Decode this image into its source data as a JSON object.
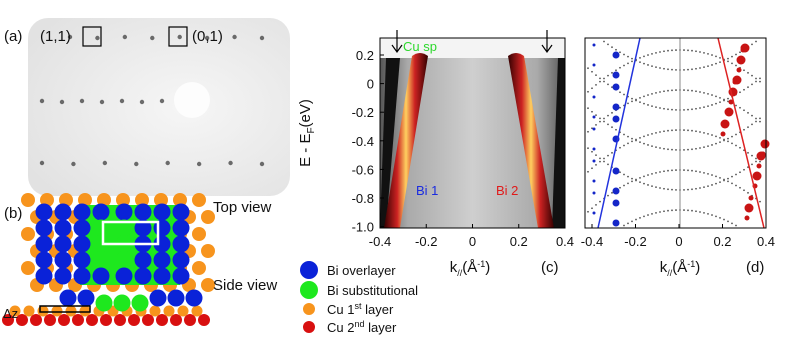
{
  "panel_a": {
    "label": "(a)",
    "spot_labels": [
      "(1,1)",
      "(0,1)"
    ]
  },
  "panel_b": {
    "label": "(b)",
    "views": [
      "Top view",
      "Side view"
    ],
    "dz": "Δz",
    "legend": [
      {
        "text": "Bi overlayer"
      },
      {
        "text": "Bi substitutional"
      },
      {
        "text": "Cu 1",
        "sup": "st",
        "rest": " layer"
      },
      {
        "text": "Cu 2",
        "sup": "nd",
        "rest": " layer"
      }
    ]
  },
  "axis_labels": {
    "energy": [
      "E - E",
      "F",
      "(eV)"
    ],
    "k": [
      "k",
      "//",
      "(Å",
      "-1",
      ")"
    ]
  },
  "panel_c": {
    "label": "(c)",
    "annotations": {
      "cu_sp": "Cu sp",
      "bi1": "Bi 1",
      "bi2": "Bi 2"
    },
    "xticks": [
      "-0.4",
      "-0.2",
      "0",
      "0.2",
      "0.4"
    ],
    "yticks": [
      "0.2",
      "0",
      "-0.2",
      "-0.4",
      "-0.6",
      "-0.8",
      "-1.0"
    ]
  },
  "panel_d": {
    "label": "(d)",
    "xticks": [
      "-0.4",
      "-0.2",
      "0",
      "0.2",
      "0.4"
    ]
  }
}
